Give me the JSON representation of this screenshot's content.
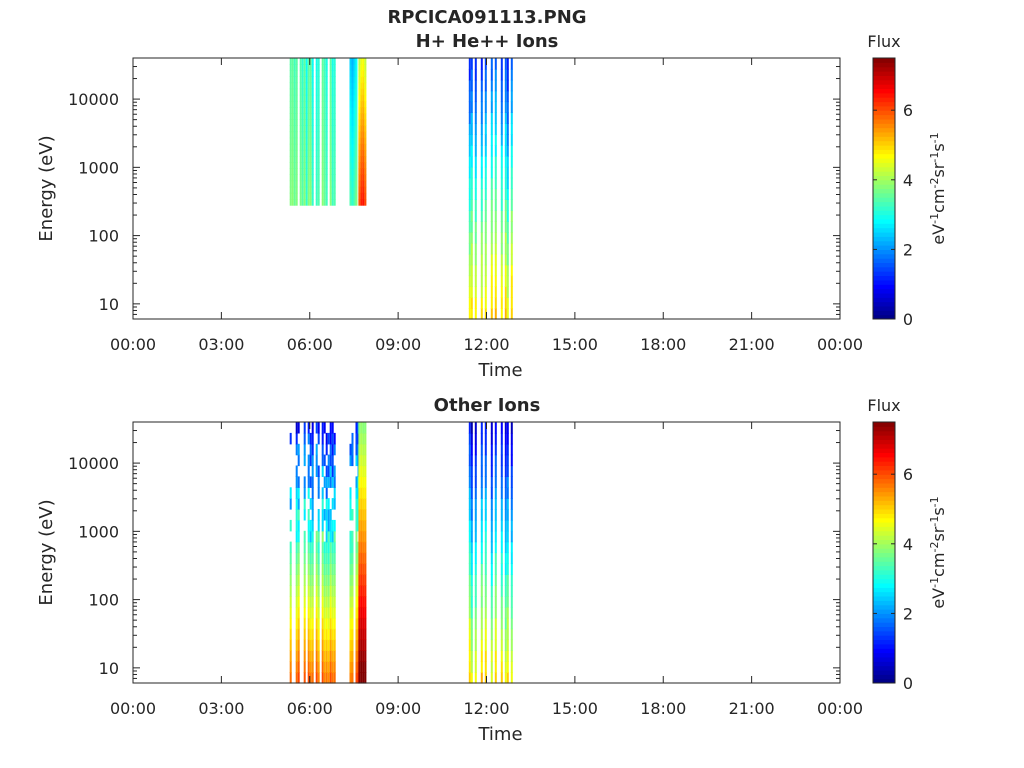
{
  "figure": {
    "title_line1": "RPCICA091113.PNG",
    "title_line2": "H+ He++ Ions",
    "panel2_title": "Other Ions"
  },
  "chart_data": [
    {
      "type": "heatmap",
      "panel": "top",
      "title": "H+ He++ Ions",
      "xlabel": "Time",
      "ylabel": "Energy (eV)",
      "x_range_hours": [
        0,
        24
      ],
      "xticks": [
        "00:00",
        "03:00",
        "06:00",
        "09:00",
        "12:00",
        "15:00",
        "18:00",
        "21:00",
        "00:00"
      ],
      "y_scale": "log",
      "y_range": [
        6,
        40000
      ],
      "yticks": [
        10,
        100,
        1000,
        10000
      ],
      "ytick_labels": [
        "10",
        "100",
        "1000",
        "10000"
      ],
      "colorbar": {
        "label": "Flux",
        "units": "eV-1cm-2sr-1s-1",
        "range": [
          0,
          7.5
        ],
        "ticks": [
          "0",
          "2",
          "4",
          "6"
        ]
      },
      "segments": [
        {
          "t_start": 5.25,
          "t_end": 6.85,
          "e_min": 280,
          "e_max": 40000,
          "flux_low": 3.5,
          "flux_high": 3.2,
          "pattern": "striped"
        },
        {
          "t_start": 7.35,
          "t_end": 7.65,
          "e_min": 280,
          "e_max": 40000,
          "flux_low": 3.4,
          "flux_high": 2.5,
          "pattern": "striped"
        },
        {
          "t_start": 7.65,
          "t_end": 7.9,
          "e_min": 280,
          "e_max": 40000,
          "flux_low": 6.3,
          "flux_high": 4.5,
          "pattern": "gradient"
        },
        {
          "t_start": 11.4,
          "t_end": 12.95,
          "e_min": 6,
          "e_max": 40000,
          "flux_low": 4.8,
          "flux_high": 1.3,
          "pattern": "bursts"
        }
      ]
    },
    {
      "type": "heatmap",
      "panel": "bottom",
      "title": "Other Ions",
      "xlabel": "Time",
      "ylabel": "Energy (eV)",
      "x_range_hours": [
        0,
        24
      ],
      "xticks": [
        "00:00",
        "03:00",
        "06:00",
        "09:00",
        "12:00",
        "15:00",
        "18:00",
        "21:00",
        "00:00"
      ],
      "y_scale": "log",
      "y_range": [
        6,
        40000
      ],
      "yticks": [
        10,
        100,
        1000,
        10000
      ],
      "ytick_labels": [
        "10",
        "100",
        "1000",
        "10000"
      ],
      "colorbar": {
        "label": "Flux",
        "units": "eV-1cm-2sr-1s-1",
        "range": [
          0,
          7.5
        ],
        "ticks": [
          "0",
          "2",
          "4",
          "6"
        ]
      },
      "segments": [
        {
          "t_start": 5.25,
          "t_end": 6.85,
          "e_min": 6,
          "e_max": 40000,
          "flux_low": 5.8,
          "flux_high": 1.0,
          "pattern": "striped-noisy"
        },
        {
          "t_start": 7.35,
          "t_end": 7.65,
          "e_min": 6,
          "e_max": 40000,
          "flux_low": 5.8,
          "flux_high": 1.2,
          "pattern": "striped-noisy"
        },
        {
          "t_start": 7.65,
          "t_end": 7.9,
          "e_min": 6,
          "e_max": 40000,
          "flux_low": 7.3,
          "flux_high": 3.5,
          "pattern": "gradient"
        },
        {
          "t_start": 11.4,
          "t_end": 12.95,
          "e_min": 6,
          "e_max": 40000,
          "flux_low": 4.8,
          "flux_high": 0.8,
          "pattern": "bursts"
        }
      ]
    }
  ]
}
